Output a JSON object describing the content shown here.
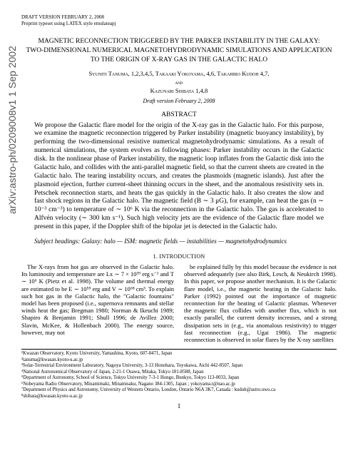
{
  "arxiv": "arXiv:astro-ph/0209008v1  1 Sep 2002",
  "header": {
    "line1": "DRAFT VERSION FEBRUARY 2, 2008",
    "line2": "Preprint typeset using LATEX style emulateapj"
  },
  "title": {
    "l1": "MAGNETIC RECONNECTION TRIGGERED BY THE PARKER INSTABILITY IN THE GALAXY:",
    "l2": "TWO-DIMENSIONAL NUMERICAL MAGNETOHYDRODYNAMIC SIMULATIONS AND APPLICATION TO THE ORIGIN OF X-RAY GAS IN THE GALACTIC HALO"
  },
  "authors": {
    "line1": "Syuniti Tanuma, 1,2,3,4,5, Takaaki Yokoyama, 4,6, Takahiro Kudoh 4,7,",
    "and": "and",
    "line2": "Kazunari Shibata 1,4,8"
  },
  "draft": "Draft version February 2, 2008",
  "abstract_h": "ABSTRACT",
  "abstract": "We propose the Galactic flare model for the origin of the X-ray gas in the Galactic halo. For this purpose, we examine the magnetic reconnection triggered by Parker instability (magnetic buoyancy instability), by performing the two-dimensional resistive numerical magnetohydrodynamic simulations. As a result of numerical simulations, the system evolves as following phases: Parker instability occurs in the Galactic disk. In the nonlinear phase of Parker instability, the magnetic loop inflates from the Galactic disk into the Galactic halo, and collides with the anti-parallel magnetic field, so that the current sheets are created in the Galactic halo. The tearing instability occurs, and creates the plasmoids (magnetic islands). Just after the plasmoid ejection, further current-sheet thinning occurs in the sheet, and the anomalous resistivity sets in. Petschek reconnection starts, and heats the gas quickly in the Galactic halo. It also creates the slow and fast shock regions in the Galactic halo. The magnetic field (B ∼ 3 μG), for example, can heat the gas (n ∼ 10⁻³ cm⁻³) to temperature of ∼ 10⁶ K via the reconnection in the Galactic halo. The gas is accelerated to Alfvén velocity (∼ 300 km s⁻¹). Such high velocity jets are the evidence of the Galactic flare model we present in this paper, if the Doppler shift of the bipolar jet is detected in the Galactic halo.",
  "subject": "Subject headings: Galaxy: halo — ISM: magnetic fields — instabilities — magnetohydrodynamics",
  "section1": "1.  INTRODUCTION",
  "col_left": "The X-rays from hot gas are observed in the Galactic halo. Its luminosity and temperature are Lx ∼ 7 × 10³⁹ erg s⁻¹ and T ∼ 10⁶ K (Pietz et al. 1998). The volume and thermal energy are estimated to be E ∼ 10⁵⁵ erg and V ∼ 10⁶⁸ cm³. To explain such hot gas in the Galactic halo, the \"Galactic fountains\" model has been proposed (i.e., supernova remnants and stellar winds heat the gas; Bregman 1980; Norman & Ikeuchi 1989; Shapiro & Benjamin 1991; Shull 1996; de Avillez 2000; Slavin, McKee, & Hollenbach 2000). The energy source, however, may not",
  "col_right": "be explained fully by this model because the evidence is not observed adequately (see also Birk, Lesch, & Neukirch 1998). In this paper, we propose another mechanism. It is the Galactic flare model, i.e., the magnetic heating in the Galactic halo.\nParker (1992) pointed out the importance of magnetic reconnection for the heating of Galactic plasmas. Whenever the magnetic flux collides with another flux, which is not exactly parallel, the current density increases, and a strong dissipation sets in (e.g., via anomalous resistivity) to trigger fast reconnection (e.g., Ugai 1986). The magnetic reconnection is observed in solar flares by the X-ray satellites",
  "footnotes": [
    "¹Kwazan Observatory, Kyoto University, Yamashina, Kyoto, 607-8471, Japan",
    "²tanuma@kwasan.kyoto-u.ac.jp",
    "³Solar-Terrestrial Environment Laboratory, Nagoya University, 3-13 Honohara, Toyokawa, Aichi 442-8507, Japan",
    "⁴National Astronomical Observatory of Japan, 2-21-1 Osawa, Mitaka, Tokyo 181-8588, Japan",
    "⁵Department of Astronomy, School of Science, Tokyo University 7-3-1 Hongo, Bunkyo, Tokyo 113-0033, Japan",
    "⁶Nobeyama Radio Observatory, Minamimaki, Minamisaku, Nagano 384-1305, Japan ; yokoyama.t@nao.ac.jp",
    "⁷Department of Physics and Astronomy, University of Western Ontario, London, Ontario N6A 3K7, Canada : kudoh@astro.uwo.ca",
    "⁸shibata@kwasan.kyoto-u.ac.jp"
  ],
  "page": "1"
}
